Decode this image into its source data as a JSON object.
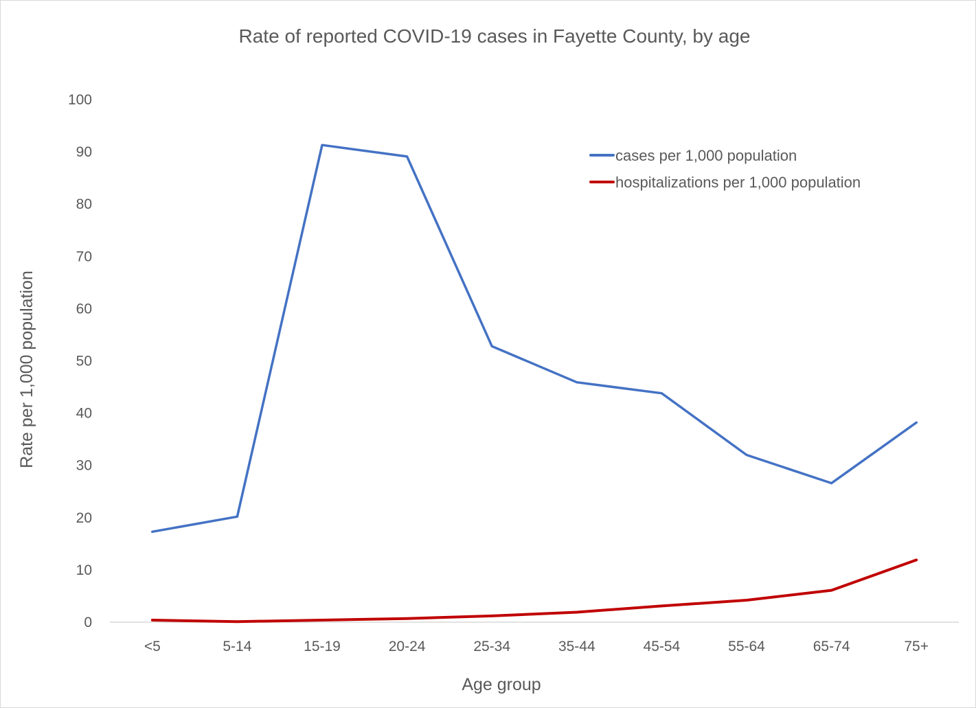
{
  "chart_data": {
    "type": "line",
    "title": "Rate of reported COVID-19 cases in Fayette County, by age",
    "xlabel": "Age group",
    "ylabel": "Rate per 1,000 population",
    "categories": [
      "<5",
      "5-14",
      "15-19",
      "20-24",
      "25-34",
      "35-44",
      "45-54",
      "55-64",
      "65-74",
      "75+"
    ],
    "ylim": [
      0,
      100
    ],
    "yticks": [
      0,
      10,
      20,
      30,
      40,
      50,
      60,
      70,
      80,
      90,
      100
    ],
    "grid": false,
    "legend_position": "top-right",
    "series": [
      {
        "name": "cases per 1,000 population",
        "color": "#4472c4",
        "values": [
          17.3,
          20.2,
          91.3,
          89.1,
          52.8,
          45.9,
          43.8,
          32.0,
          26.6,
          38.2
        ]
      },
      {
        "name": "hospitalizations per 1,000 population",
        "color": "#c00000",
        "values": [
          0.4,
          0.1,
          0.4,
          0.7,
          1.2,
          1.9,
          3.1,
          4.2,
          6.1,
          11.9
        ]
      }
    ]
  }
}
